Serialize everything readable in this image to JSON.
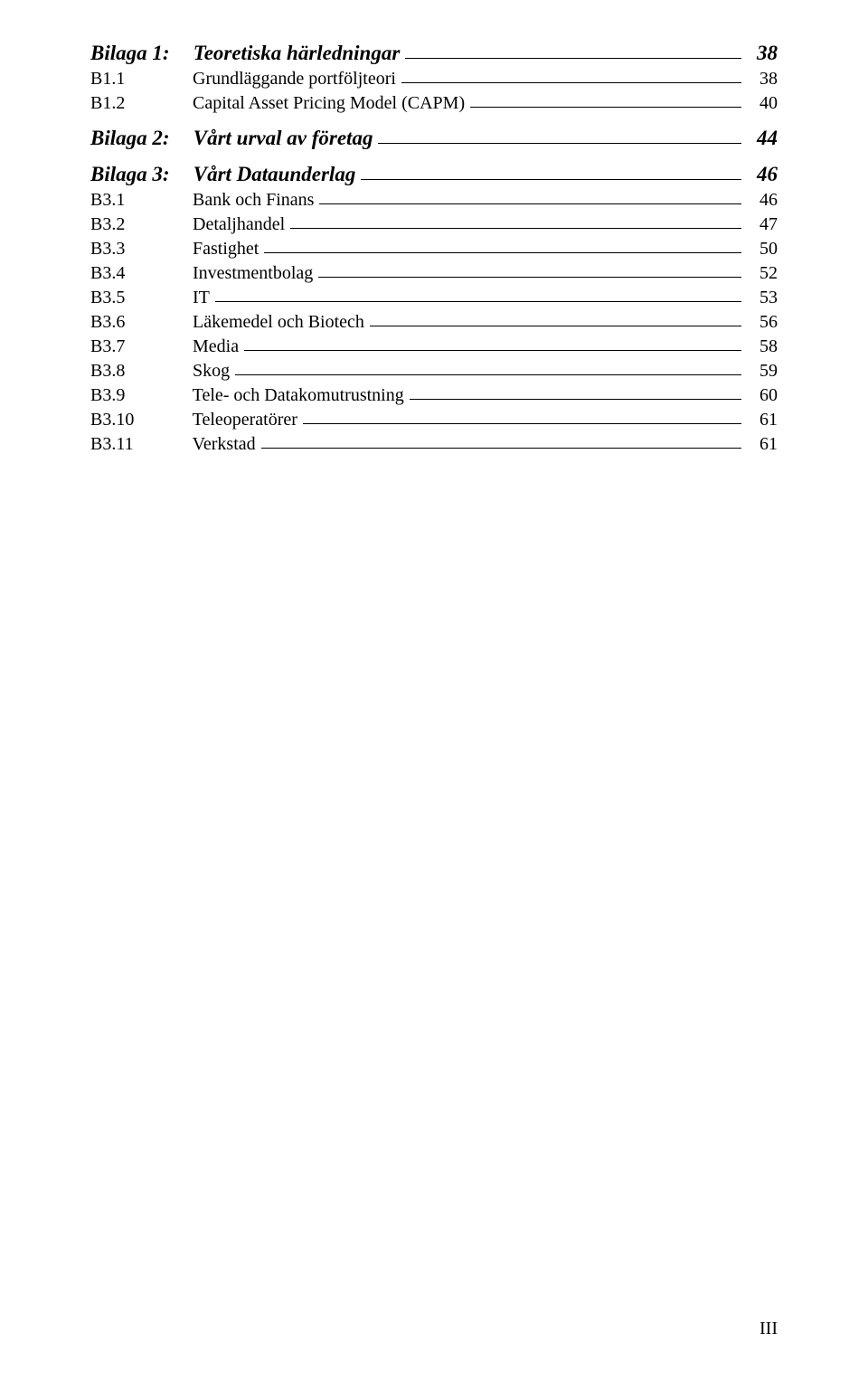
{
  "sections": [
    {
      "type": "heading",
      "prefix": "Bilaga 1:",
      "title": "Teoretiska härledningar",
      "page": "38",
      "items": [
        {
          "prefix": "B1.1",
          "title": "Grundläggande portföljteori",
          "page": "38"
        },
        {
          "prefix": "B1.2",
          "title": "Capital Asset Pricing Model (CAPM)",
          "page": "40"
        }
      ]
    },
    {
      "type": "heading",
      "prefix": "Bilaga 2:",
      "title": "Vårt urval av företag",
      "page": "44",
      "items": []
    },
    {
      "type": "heading",
      "prefix": "Bilaga 3:",
      "title": "Vårt Dataunderlag",
      "page": "46",
      "items": [
        {
          "prefix": "B3.1",
          "title": "Bank och Finans",
          "page": "46"
        },
        {
          "prefix": "B3.2",
          "title": "Detaljhandel",
          "page": "47"
        },
        {
          "prefix": "B3.3",
          "title": "Fastighet",
          "page": "50"
        },
        {
          "prefix": "B3.4",
          "title": "Investmentbolag",
          "page": "52"
        },
        {
          "prefix": "B3.5",
          "title": "IT",
          "page": "53"
        },
        {
          "prefix": "B3.6",
          "title": "Läkemedel och Biotech",
          "page": "56"
        },
        {
          "prefix": "B3.7",
          "title": "Media",
          "page": "58"
        },
        {
          "prefix": "B3.8",
          "title": "Skog",
          "page": "59"
        },
        {
          "prefix": "B3.9",
          "title": "Tele- och Datakomutrustning",
          "page": "60"
        },
        {
          "prefix": "B3.10",
          "title": "Teleoperatörer",
          "page": "61"
        },
        {
          "prefix": "B3.11",
          "title": "Verkstad",
          "page": "61"
        }
      ]
    }
  ],
  "footer": "III"
}
